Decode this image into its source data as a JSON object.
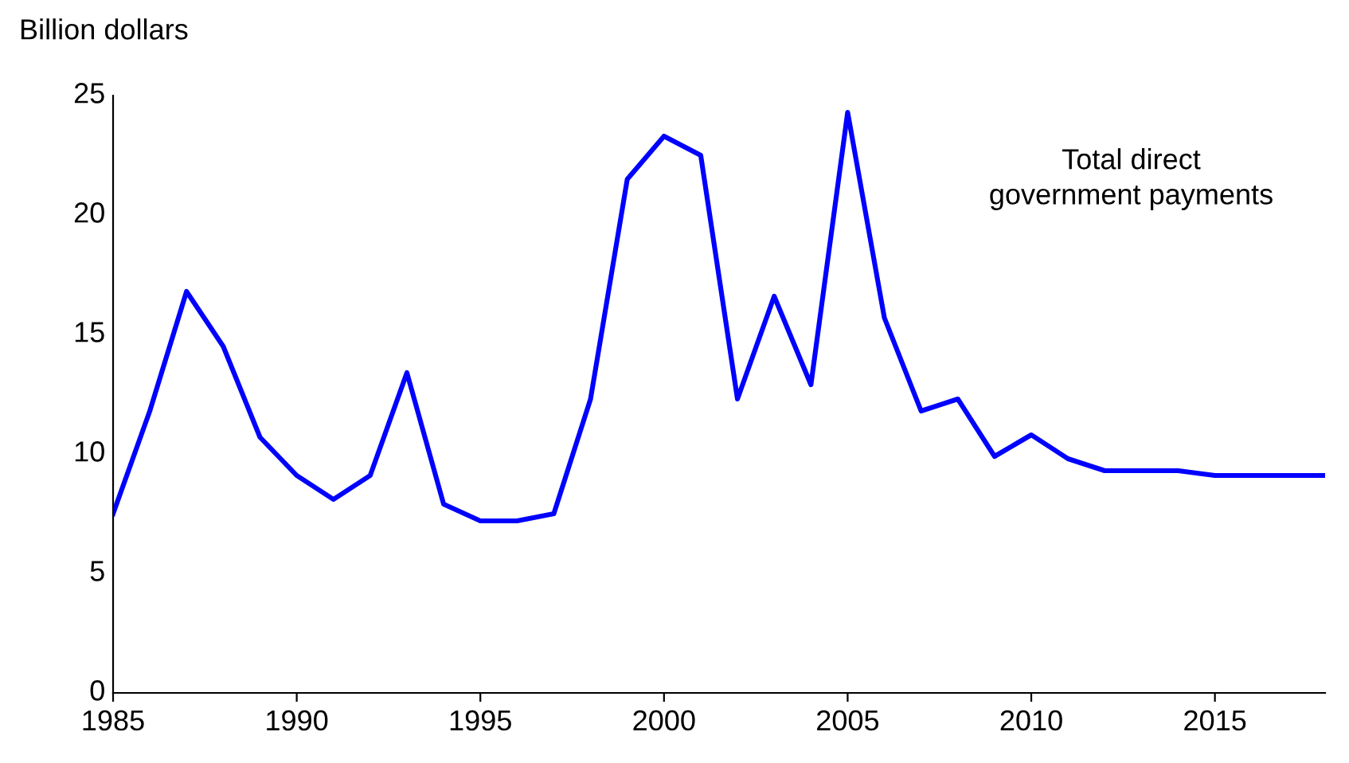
{
  "chart_data": {
    "type": "line",
    "ylabel": "Billion dollars",
    "annotations": [
      "Total direct\ngovernment payments"
    ],
    "x": [
      1985,
      1986,
      1987,
      1988,
      1989,
      1990,
      1991,
      1992,
      1993,
      1994,
      1995,
      1996,
      1997,
      1998,
      1999,
      2000,
      2001,
      2002,
      2003,
      2004,
      2005,
      2006,
      2007,
      2008,
      2009,
      2010,
      2011,
      2012,
      2013,
      2014,
      2015,
      2016,
      2017,
      2018
    ],
    "series": [
      {
        "color": "#0000ff",
        "values": [
          7.5,
          11.8,
          16.8,
          14.5,
          10.7,
          9.1,
          8.1,
          9.1,
          13.4,
          7.9,
          7.2,
          7.2,
          7.5,
          12.3,
          21.5,
          23.3,
          22.5,
          12.3,
          16.6,
          12.9,
          24.3,
          15.7,
          11.8,
          12.3,
          9.9,
          10.8,
          9.8,
          9.3,
          9.3,
          9.3,
          9.1,
          9.1,
          9.1,
          9.1
        ]
      }
    ],
    "xlim": [
      1985,
      2018
    ],
    "xticks": [
      1985,
      1990,
      1995,
      2000,
      2005,
      2010,
      2015
    ],
    "ylim": [
      0,
      25
    ],
    "yticks": [
      0,
      5,
      10,
      15,
      20,
      25
    ],
    "grid": false,
    "legend": false,
    "marker": "none",
    "line_style": "solid"
  }
}
